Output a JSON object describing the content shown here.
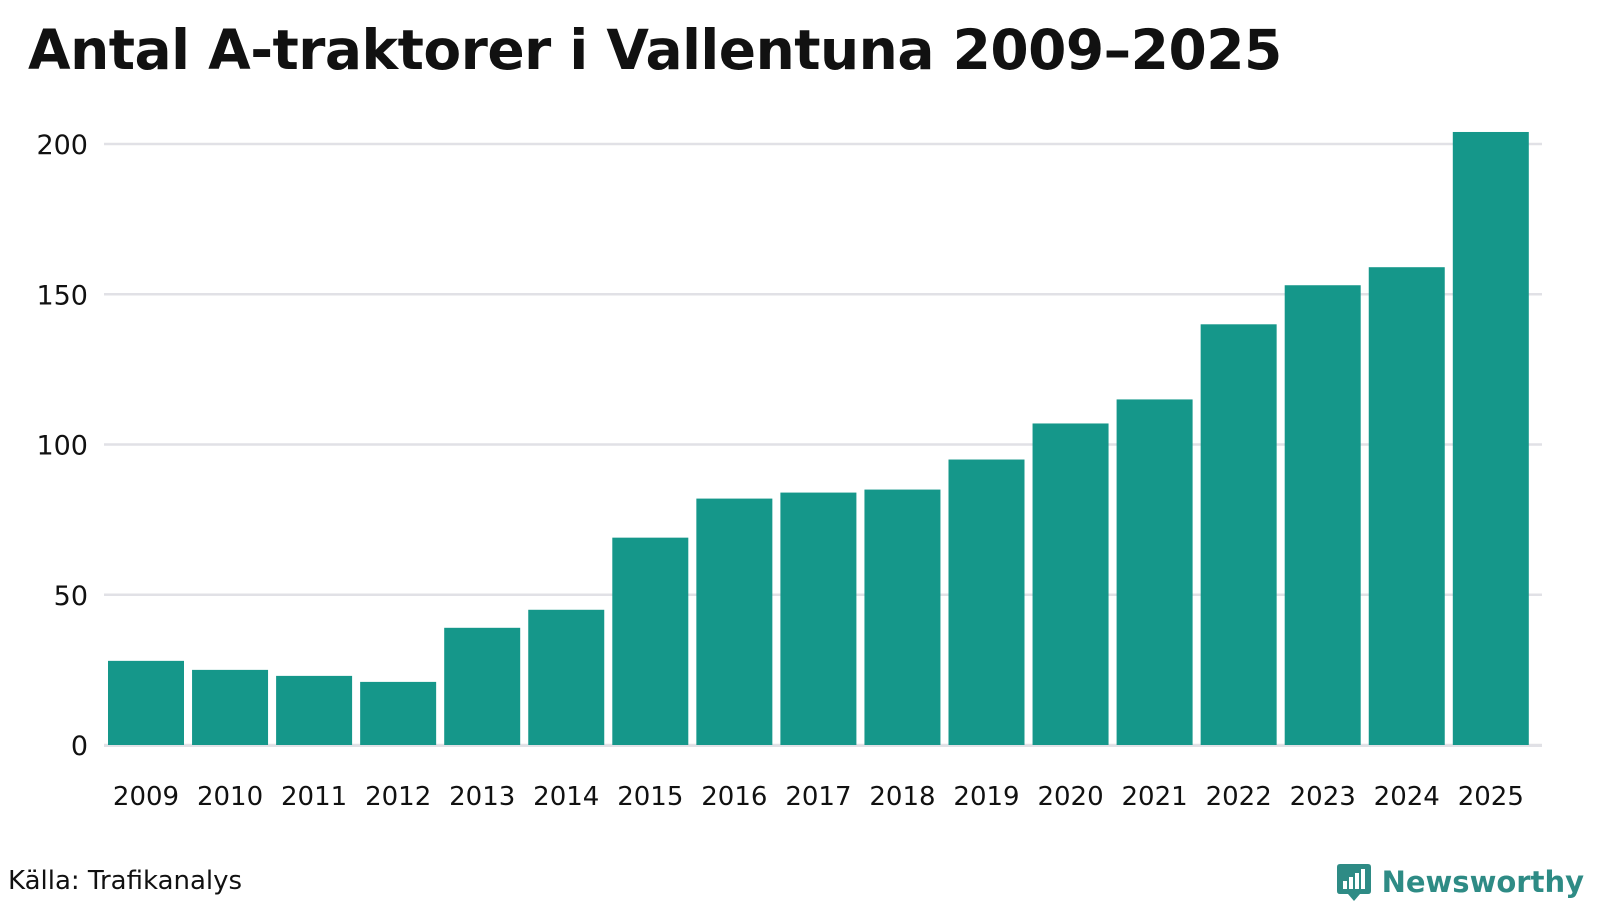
{
  "title": "Antal A-traktorer i Vallentuna 2009–2025",
  "source": "Källa: Trafikanalys",
  "brand": {
    "name": "Newsworthy",
    "icon": "newsworthy-logo-icon",
    "color": "#2e8b85"
  },
  "colors": {
    "bar": "#15978a",
    "grid": "#e1e1e6",
    "axis_text": "#111111"
  },
  "chart_data": {
    "type": "bar",
    "categories": [
      "2009",
      "2010",
      "2011",
      "2012",
      "2013",
      "2014",
      "2015",
      "2016",
      "2017",
      "2018",
      "2019",
      "2020",
      "2021",
      "2022",
      "2023",
      "2024",
      "2025"
    ],
    "values": [
      28,
      25,
      23,
      21,
      39,
      45,
      69,
      82,
      84,
      85,
      95,
      107,
      115,
      140,
      153,
      159,
      204
    ],
    "yticks": [
      "0",
      "50",
      "100",
      "150",
      "200"
    ],
    "ylim": [
      0,
      210
    ],
    "grid": true,
    "legend": "none",
    "xlabel": "",
    "ylabel": ""
  }
}
